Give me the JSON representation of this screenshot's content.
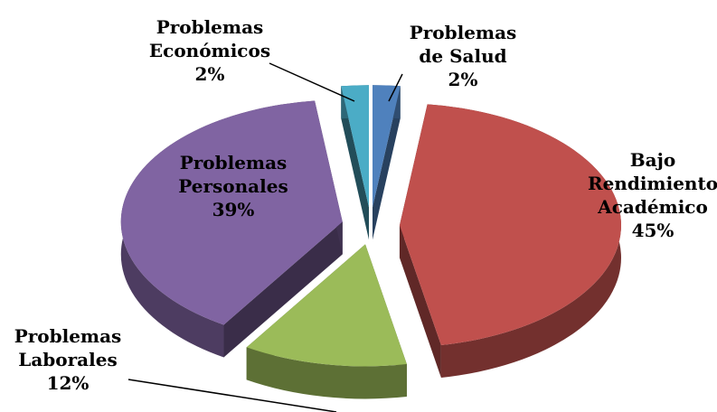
{
  "chart_data": {
    "type": "pie3d",
    "categories": [
      "Problemas\nde Salud",
      "Bajo\nRendimiento\nAcadémico",
      "Problemas\nLaborales",
      "Problemas\nPersonales",
      "Problemas\nEconómicos"
    ],
    "values": [
      2,
      45,
      12,
      39,
      2
    ],
    "value_labels": [
      "2%",
      "45%",
      "12%",
      "39%",
      "2%"
    ],
    "colors": [
      "#4f81bd",
      "#c0504d",
      "#9bbb59",
      "#8064a2",
      "#4bacc6"
    ]
  }
}
